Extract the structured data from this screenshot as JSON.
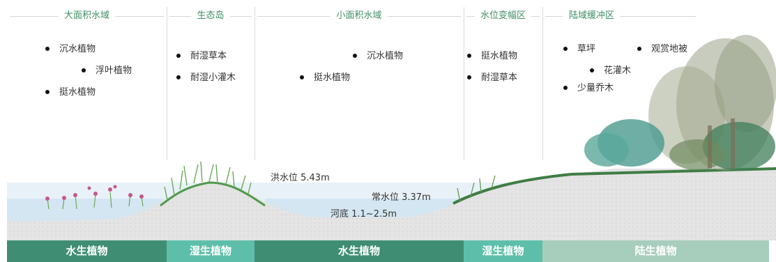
{
  "zones": [
    {
      "key": "large_water",
      "title": "大面积水域",
      "items": [
        "沉水植物",
        "浮叶植物",
        "挺水植物"
      ]
    },
    {
      "key": "eco_island",
      "title": "生态岛",
      "items": [
        "耐湿草本",
        "耐湿小灌木"
      ]
    },
    {
      "key": "small_water",
      "title": "小面积水域",
      "items": [
        "沉水植物",
        "挺水植物"
      ]
    },
    {
      "key": "fluctuation",
      "title": "水位变幅区",
      "items": [
        "挺水植物",
        "耐湿草本"
      ]
    },
    {
      "key": "land_buffer",
      "title": "陆域缓冲区",
      "items": [
        "草坪",
        "观赏地被",
        "花灌木",
        "少量乔木"
      ]
    }
  ],
  "water_levels": {
    "flood": "洪水位  5.43m",
    "normal": "常水位  3.37m",
    "riverbed": "河底 1.1~2.5m"
  },
  "bottom_bands": [
    {
      "label": "水生植物",
      "color": "#3f8e73"
    },
    {
      "label": "湿生植物",
      "color": "#5dbfa9"
    },
    {
      "label": "水生植物",
      "color": "#3f8e73"
    },
    {
      "label": "湿生植物",
      "color": "#5dbfa9"
    },
    {
      "label": "陆生植物",
      "color": "#a7cdbd"
    }
  ],
  "colors": {
    "terrain": "#e3e3e3",
    "water": "#dbeaf4",
    "grass": "#4f9a4c",
    "accent_green": "#3f8d63"
  }
}
